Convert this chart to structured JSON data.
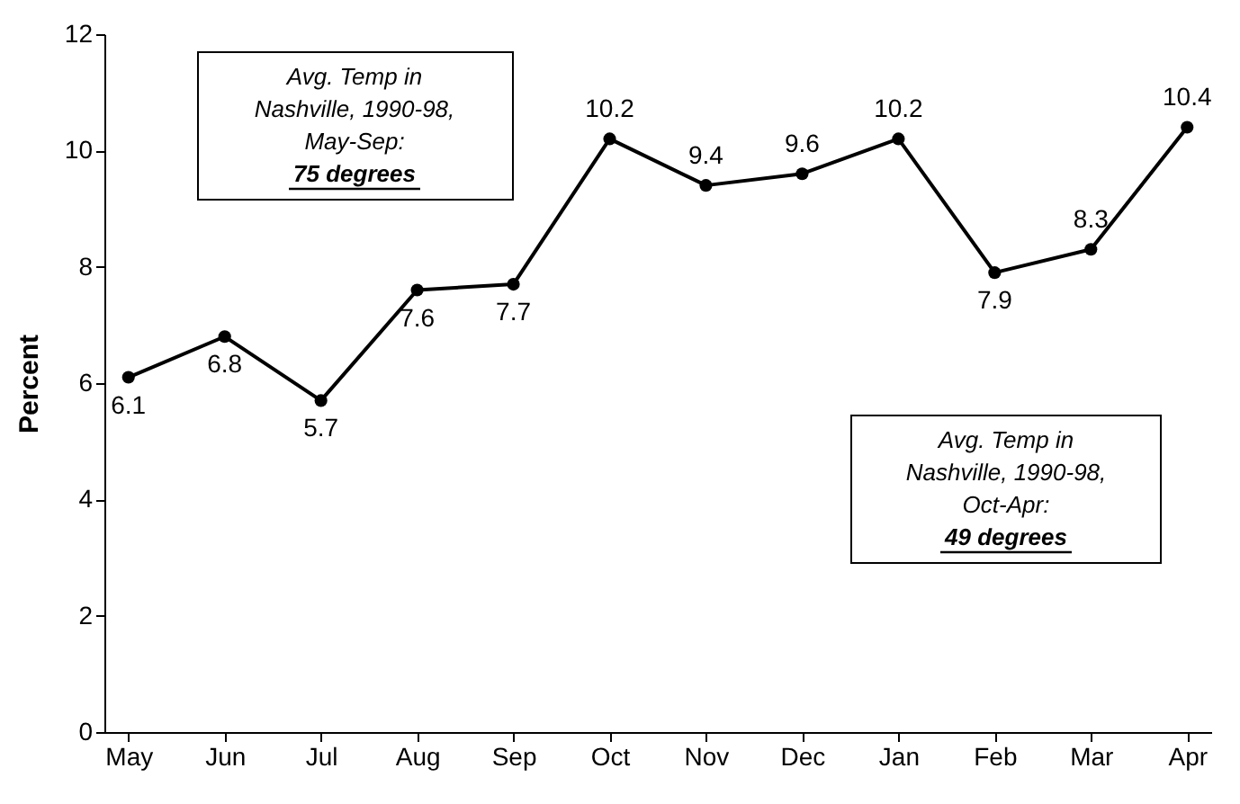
{
  "chart_data": {
    "type": "line",
    "ylabel": "Percent",
    "categories": [
      "May",
      "Jun",
      "Jul",
      "Aug",
      "Sep",
      "Oct",
      "Nov",
      "Dec",
      "Jan",
      "Feb",
      "Mar",
      "Apr"
    ],
    "series": [
      {
        "color": "#000000",
        "values": [
          6.1,
          6.8,
          5.7,
          7.6,
          7.7,
          10.2,
          9.4,
          9.6,
          10.2,
          7.9,
          8.3,
          10.4
        ]
      }
    ],
    "ylim": [
      0,
      12
    ],
    "yticks": [
      0,
      2,
      4,
      6,
      8,
      10,
      12
    ],
    "grid": false,
    "marker": "circle",
    "line_style": "solid",
    "data_labels": true,
    "annotations": [
      "Avg. Temp in Nashville, 1990-98, May-Sep: 75 degrees",
      "Avg. Temp in Nashville, 1990-98, Oct-Apr: 49 degrees"
    ]
  }
}
